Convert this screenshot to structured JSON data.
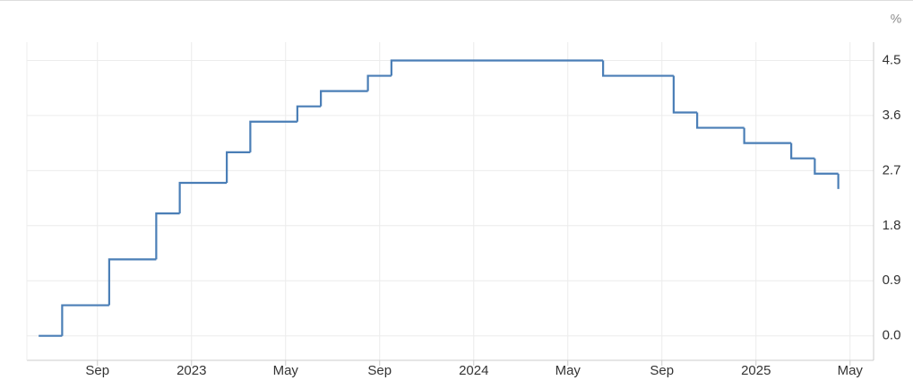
{
  "chart_data": {
    "type": "step-line",
    "unit": "%",
    "x": [
      "2022-06",
      "2022-07",
      "2022-09",
      "2022-11",
      "2022-12",
      "2023-02",
      "2023-03",
      "2023-05",
      "2023-06",
      "2023-08",
      "2023-09",
      "2024-06",
      "2024-09",
      "2024-10",
      "2024-12",
      "2025-02",
      "2025-03",
      "2025-04"
    ],
    "series": [
      {
        "color": "#4a7eb6",
        "values": [
          0,
          0.5,
          1.25,
          2.0,
          2.5,
          3.0,
          3.5,
          3.75,
          4.0,
          4.25,
          4.5,
          4.25,
          3.65,
          3.4,
          3.15,
          2.9,
          2.65,
          2.4
        ]
      }
    ],
    "xlim": [
      "2022-06",
      "2025-06"
    ],
    "xticks": [
      {
        "value": "2022-09",
        "label": "Sep"
      },
      {
        "value": "2023-01",
        "label": "2023"
      },
      {
        "value": "2023-05",
        "label": "May"
      },
      {
        "value": "2023-09",
        "label": "Sep"
      },
      {
        "value": "2024-01",
        "label": "2024"
      },
      {
        "value": "2024-05",
        "label": "May"
      },
      {
        "value": "2024-09",
        "label": "Sep"
      },
      {
        "value": "2025-01",
        "label": "2025"
      },
      {
        "value": "2025-05",
        "label": "May"
      }
    ],
    "ylim": [
      -0.4,
      4.8
    ],
    "yticks": [
      {
        "value": 0,
        "label": "0.0"
      },
      0.9,
      1.8,
      2.7,
      3.6,
      4.5
    ],
    "grid": true
  }
}
